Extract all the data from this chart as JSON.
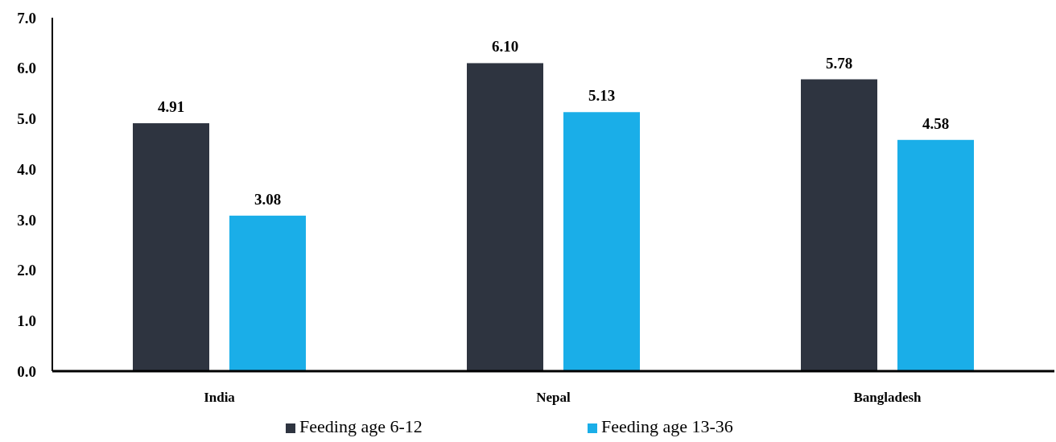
{
  "chart_data": {
    "type": "bar",
    "categories": [
      "India",
      "Nepal",
      "Bangladesh"
    ],
    "series": [
      {
        "name": "Feeding age 6-12",
        "color": "#2e3440",
        "values": [
          4.91,
          6.1,
          5.78
        ]
      },
      {
        "name": "Feeding age 13-36",
        "color": "#1aaee8",
        "values": [
          3.08,
          5.13,
          4.58
        ]
      }
    ],
    "ylim": [
      0,
      7
    ],
    "yticks": [
      {
        "value": 0,
        "label": "0.0"
      },
      {
        "value": 1,
        "label": "1.0"
      },
      {
        "value": 2,
        "label": "2.0"
      },
      {
        "value": 3,
        "label": "3.0"
      },
      {
        "value": 4,
        "label": "4.0"
      },
      {
        "value": 5,
        "label": "5.0"
      },
      {
        "value": 6,
        "label": "6.0"
      },
      {
        "value": 7,
        "label": "7.0"
      }
    ],
    "value_labels": [
      [
        "4.91",
        "6.10",
        "5.78"
      ],
      [
        "3.08",
        "5.13",
        "4.58"
      ]
    ],
    "legend": "bottom",
    "grid": false
  }
}
